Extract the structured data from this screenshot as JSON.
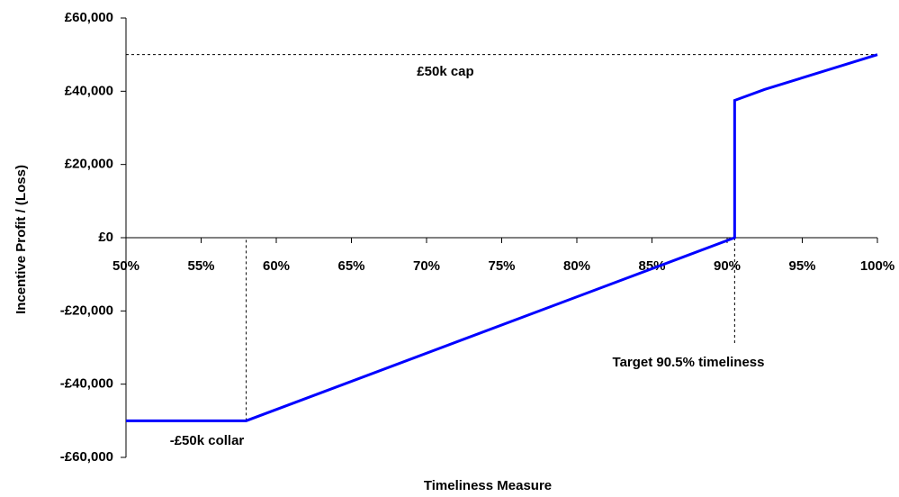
{
  "chart_data": {
    "type": "line",
    "x_label": "Timeliness Measure",
    "y_label": "Incentive Profit / (Loss)",
    "x": [
      50,
      58,
      90.5,
      90.5,
      92.5,
      100
    ],
    "values": [
      -50000,
      -50000,
      0,
      37500,
      40500,
      50000
    ],
    "color": "#0000ff",
    "xlim": [
      50,
      100
    ],
    "xticks": [
      {
        "value": 50,
        "label": "50%"
      },
      {
        "value": 55,
        "label": "55%"
      },
      {
        "value": 60,
        "label": "60%"
      },
      {
        "value": 65,
        "label": "65%"
      },
      {
        "value": 70,
        "label": "70%"
      },
      {
        "value": 75,
        "label": "75%"
      },
      {
        "value": 80,
        "label": "80%"
      },
      {
        "value": 85,
        "label": "85%"
      },
      {
        "value": 90,
        "label": "90%"
      },
      {
        "value": 95,
        "label": "95%"
      },
      {
        "value": 100,
        "label": "100%"
      }
    ],
    "ylim": [
      -60000,
      60000
    ],
    "yticks": [
      {
        "value": -60000,
        "label": "-£60,000"
      },
      {
        "value": -40000,
        "label": "-£40,000"
      },
      {
        "value": -20000,
        "label": "-£20,000"
      },
      {
        "value": 0,
        "label": "£0"
      },
      {
        "value": 20000,
        "label": "£20,000"
      },
      {
        "value": 40000,
        "label": "£40,000"
      },
      {
        "value": 60000,
        "label": "£60,000"
      }
    ],
    "annotations": [
      "£50k cap",
      "-£50k collar",
      "Target 90.5% timeliness"
    ]
  }
}
